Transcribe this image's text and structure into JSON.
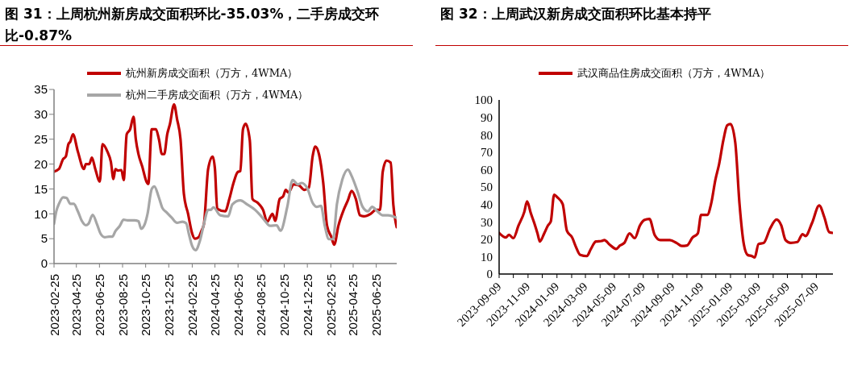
{
  "chart_data": [
    {
      "type": "line",
      "title": "图 31：上周杭州新房成交面积环比-35.03%，二手房成交环比-0.87%",
      "legend": "top",
      "xlim": [
        "2023-02-25",
        "2025-08-18"
      ],
      "xticks": [
        "2023-02-25",
        "2023-04-25",
        "2023-06-25",
        "2023-08-25",
        "2023-10-25",
        "2023-12-25",
        "2024-02-25",
        "2024-04-25",
        "2024-06-25",
        "2024-08-25",
        "2024-10-25",
        "2024-12-25",
        "2025-02-25",
        "2025-04-25",
        "2025-06-25"
      ],
      "ylim": [
        0,
        35
      ],
      "yticks": [
        0,
        5,
        10,
        15,
        20,
        25,
        30,
        35
      ],
      "series": [
        {
          "name": "杭州新房成交面积（万方，4WMA）",
          "color": "#c00000",
          "x": [
            "2023-02-25",
            "2023-03-10",
            "2023-03-21",
            "2023-03-28",
            "2023-04-04",
            "2023-04-09",
            "2023-04-16",
            "2023-04-29",
            "2023-05-15",
            "2023-05-20",
            "2023-05-29",
            "2023-06-05",
            "2023-06-14",
            "2023-06-26",
            "2023-07-03",
            "2023-07-16",
            "2023-07-25",
            "2023-08-01",
            "2023-08-06",
            "2023-08-13",
            "2023-08-22",
            "2023-08-28",
            "2023-09-05",
            "2023-09-14",
            "2023-09-23",
            "2023-09-29",
            "2023-10-06",
            "2023-10-16",
            "2023-10-27",
            "2023-11-01",
            "2023-11-10",
            "2023-11-21",
            "2023-11-29",
            "2023-12-07",
            "2023-12-13",
            "2023-12-21",
            "2023-12-28",
            "2024-01-08",
            "2024-01-16",
            "2024-01-25",
            "2024-02-03",
            "2024-02-14",
            "2024-02-25",
            "2024-03-03",
            "2024-03-13",
            "2024-03-20",
            "2024-03-27",
            "2024-04-07",
            "2024-04-19",
            "2024-04-25",
            "2024-05-01",
            "2024-05-22",
            "2024-06-02",
            "2024-06-13",
            "2024-06-24",
            "2024-07-01",
            "2024-07-08",
            "2024-07-15",
            "2024-07-26",
            "2024-08-02",
            "2024-08-16",
            "2024-08-30",
            "2024-09-10",
            "2024-09-24",
            "2024-10-01",
            "2024-10-13",
            "2024-10-22",
            "2024-10-29",
            "2024-11-05",
            "2024-11-19",
            "2024-12-03",
            "2024-12-17",
            "2024-12-29",
            "2025-01-08",
            "2025-01-15",
            "2025-01-25",
            "2025-02-05",
            "2025-02-15",
            "2025-02-26",
            "2025-03-06",
            "2025-03-17",
            "2025-03-31",
            "2025-04-11",
            "2025-04-21",
            "2025-05-02",
            "2025-05-13",
            "2025-05-23",
            "2025-06-10",
            "2025-06-24",
            "2025-07-05",
            "2025-07-12",
            "2025-07-22",
            "2025-08-02",
            "2025-08-09",
            "2025-08-18"
          ],
          "values": [
            18.5,
            19,
            21,
            21.5,
            24,
            24.5,
            26,
            22.5,
            19,
            20,
            20,
            21.3,
            19,
            16.5,
            24,
            22.5,
            20.5,
            17,
            19,
            18.7,
            18.8,
            16.8,
            26,
            27,
            29.5,
            25,
            22,
            19.5,
            16.5,
            16,
            27,
            27,
            25,
            22,
            22,
            26,
            28,
            32,
            29,
            25,
            14,
            10,
            6,
            5,
            5.3,
            6.5,
            8,
            19,
            21.5,
            19,
            11,
            10.5,
            13,
            16.2,
            18.4,
            18.6,
            27,
            28.1,
            24.8,
            13,
            12.2,
            10.8,
            8.4,
            10,
            8.6,
            13,
            13.5,
            14.8,
            14.3,
            15.9,
            15.7,
            14.8,
            15.3,
            21.6,
            23.5,
            21.9,
            16.2,
            7.6,
            5.4,
            3.8,
            7.6,
            10.8,
            12.7,
            14.6,
            13,
            9.7,
            9.5,
            10,
            10.8,
            10.8,
            18.4,
            20.7,
            20.3,
            11.9,
            7.3
          ]
        },
        {
          "name": "杭州二手房成交面积（万方，4WMA）",
          "color": "#a6a6a6",
          "x": [
            "2023-02-25",
            "2023-03-03",
            "2023-03-10",
            "2023-03-21",
            "2023-03-30",
            "2023-04-09",
            "2023-04-18",
            "2023-04-29",
            "2023-05-10",
            "2023-05-20",
            "2023-05-27",
            "2023-06-07",
            "2023-06-18",
            "2023-06-28",
            "2023-07-09",
            "2023-07-20",
            "2023-07-29",
            "2023-08-06",
            "2023-08-17",
            "2023-08-28",
            "2023-09-07",
            "2023-09-25",
            "2023-10-06",
            "2023-10-13",
            "2023-10-23",
            "2023-10-30",
            "2023-11-10",
            "2023-11-17",
            "2023-11-28",
            "2023-12-08",
            "2023-12-19",
            "2024-01-02",
            "2024-01-16",
            "2024-01-30",
            "2024-02-09",
            "2024-02-16",
            "2024-02-25",
            "2024-03-05",
            "2024-03-16",
            "2024-03-27",
            "2024-04-07",
            "2024-04-14",
            "2024-04-21",
            "2024-05-09",
            "2024-05-30",
            "2024-06-10",
            "2024-07-01",
            "2024-07-19",
            "2024-08-09",
            "2024-08-23",
            "2024-09-06",
            "2024-09-17",
            "2024-10-05",
            "2024-10-15",
            "2024-11-02",
            "2024-11-16",
            "2024-11-30",
            "2024-12-10",
            "2024-12-25",
            "2025-01-08",
            "2025-01-19",
            "2025-01-30",
            "2025-02-09",
            "2025-02-20",
            "2025-03-03",
            "2025-03-13",
            "2025-03-27",
            "2025-04-11",
            "2025-04-21",
            "2025-05-06",
            "2025-05-20",
            "2025-06-03",
            "2025-06-14",
            "2025-06-28",
            "2025-07-12",
            "2025-07-26",
            "2025-08-18"
          ],
          "values": [
            8,
            10.5,
            12,
            13.3,
            13.2,
            12,
            12,
            10.5,
            8.5,
            7.7,
            8,
            9.8,
            8,
            6,
            5.3,
            5.4,
            5.4,
            6.5,
            7.5,
            8.8,
            8.7,
            8.7,
            8.5,
            7,
            8,
            10,
            15,
            15.5,
            13.5,
            11.2,
            10.3,
            9.2,
            8.2,
            8.4,
            8.1,
            6,
            3.5,
            2.7,
            4.5,
            8,
            10.8,
            10.8,
            11.3,
            9.7,
            9.5,
            11.9,
            12.7,
            11.9,
            10.8,
            9.7,
            8.4,
            7.6,
            7.7,
            6.6,
            11.4,
            16.8,
            15.9,
            16.2,
            15.1,
            12.2,
            11.4,
            11.6,
            7.6,
            4.9,
            4.9,
            11.9,
            16.8,
            18.9,
            17.6,
            14.6,
            11.4,
            10.5,
            11.4,
            10.5,
            9.7,
            9.7,
            9.2
          ]
        }
      ]
    },
    {
      "type": "line",
      "title": "图 32：上周武汉新房成交面积环比基本持平",
      "legend": "top",
      "xlim": [
        "2023-09-09",
        "2025-08-13"
      ],
      "xticks": [
        "2023-09-09",
        {
          "value": "2023-10-09",
          "label": null
        },
        "2023-11-09",
        {
          "value": "2023-12-09",
          "label": null
        },
        "2024-01-09",
        {
          "value": "2024-02-09",
          "label": null
        },
        "2024-03-09",
        {
          "value": "2024-04-09",
          "label": null
        },
        "2024-05-09",
        {
          "value": "2024-06-09",
          "label": null
        },
        "2024-07-09",
        {
          "value": "2024-08-09",
          "label": null
        },
        "2024-09-09",
        {
          "value": "2024-10-09",
          "label": null
        },
        "2024-11-09",
        {
          "value": "2024-12-09",
          "label": null
        },
        "2025-01-09",
        {
          "value": "2025-02-09",
          "label": null
        },
        "2025-03-09",
        {
          "value": "2025-04-09",
          "label": null
        },
        "2025-05-09",
        {
          "value": "2025-06-09",
          "label": null
        },
        "2025-07-09"
      ],
      "ylim": [
        0,
        100
      ],
      "yticks": [
        0,
        10,
        20,
        30,
        40,
        50,
        60,
        70,
        80,
        90,
        100
      ],
      "series": [
        {
          "name": "武汉商品住房成交面积（万方，4WMA）",
          "color": "#c00000",
          "x": [
            "2023-09-09",
            "2023-09-23",
            "2023-09-30",
            "2023-10-09",
            "2023-10-20",
            "2023-11-01",
            "2023-11-07",
            "2023-11-15",
            "2023-11-22",
            "2023-11-29",
            "2023-12-04",
            "2023-12-13",
            "2023-12-21",
            "2023-12-27",
            "2024-01-03",
            "2024-01-10",
            "2024-01-21",
            "2024-01-30",
            "2024-02-10",
            "2024-02-18",
            "2024-02-27",
            "2024-03-12",
            "2024-03-20",
            "2024-03-31",
            "2024-04-12",
            "2024-04-18",
            "2024-04-29",
            "2024-05-13",
            "2024-05-21",
            "2024-05-30",
            "2024-06-10",
            "2024-06-21",
            "2024-07-02",
            "2024-07-11",
            "2024-07-22",
            "2024-08-02",
            "2024-08-14",
            "2024-09-03",
            "2024-09-17",
            "2024-09-28",
            "2024-10-09",
            "2024-10-21",
            "2024-11-01",
            "2024-11-08",
            "2024-11-21",
            "2024-11-29",
            "2024-12-08",
            "2024-12-16",
            "2024-12-25",
            "2025-01-02",
            "2025-01-09",
            "2025-01-19",
            "2025-01-28",
            "2025-02-06",
            "2025-02-14",
            "2025-02-23",
            "2025-03-01",
            "2025-03-09",
            "2025-03-20",
            "2025-04-03",
            "2025-04-16",
            "2025-04-26",
            "2025-05-05",
            "2025-05-16",
            "2025-05-30",
            "2025-06-10",
            "2025-06-16",
            "2025-06-30",
            "2025-07-15",
            "2025-07-26",
            "2025-08-05",
            "2025-08-13"
          ],
          "values": [
            23.6,
            21,
            22.5,
            20.6,
            27.9,
            35.6,
            41.7,
            34.8,
            29.4,
            23.3,
            18.7,
            23.3,
            27.9,
            30.2,
            45.6,
            44,
            40.2,
            24.8,
            21,
            15.6,
            11,
            10.3,
            14.1,
            18.7,
            19,
            19.5,
            16.9,
            14.4,
            16.4,
            17.9,
            23.3,
            20.6,
            27.9,
            31,
            31.7,
            22.5,
            19.5,
            19.5,
            17.9,
            16.1,
            16.4,
            21,
            23.3,
            34,
            34,
            40.2,
            54,
            63.2,
            77,
            85.4,
            86.2,
            75.5,
            40.2,
            17.2,
            11,
            10.3,
            9.5,
            17.2,
            17.9,
            26.4,
            31.3,
            27.9,
            19.5,
            17.9,
            18.4,
            22.9,
            21.8,
            29.4,
            39.4,
            32.5,
            24.1,
            23.6
          ]
        }
      ]
    }
  ]
}
